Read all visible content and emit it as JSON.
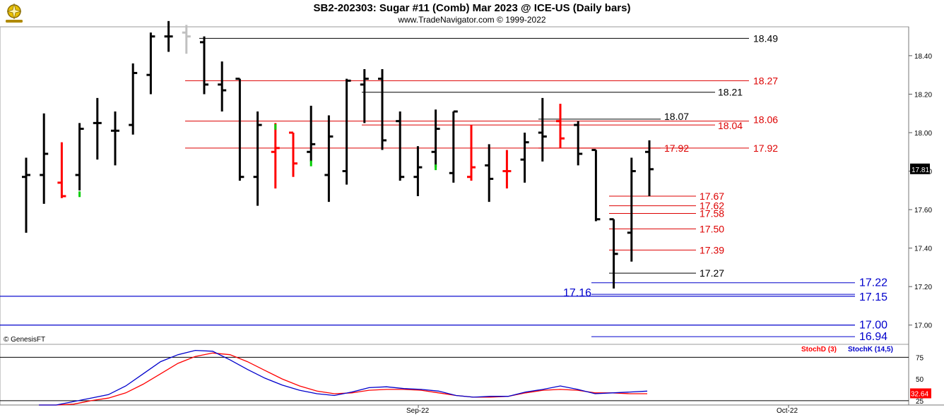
{
  "header": {
    "title": "SB2-202303:  Sugar #11 (Comb) Mar 2023 @ ICE-US  (Daily bars)",
    "subtitle": "www.TradeNavigator.com © 1999-2022",
    "copyright": "© GenesisFT"
  },
  "colors": {
    "up": "#000000",
    "down": "#ff0000",
    "highlight": "#00cc00",
    "ghost": "#c0c0c0",
    "stoch_d": "#ff0000",
    "stoch_k": "#0000cc",
    "blue_level": "#0000aa"
  },
  "chart_data": [
    {
      "type": "ohlc",
      "title": "SB2-202303:  Sugar #11 (Comb) Mar 2023 @ ICE-US  (Daily bars)",
      "ylim": [
        16.9,
        18.55
      ],
      "y_ticks": [
        17.0,
        17.2,
        17.4,
        17.6,
        17.8,
        18.0,
        18.2,
        18.4
      ],
      "x_ticks": [
        "Sep-22",
        "Oct-22"
      ],
      "last_price": "17.81",
      "bars": [
        {
          "o": 17.77,
          "h": 17.87,
          "l": 17.48,
          "c": 17.78,
          "color": "up"
        },
        {
          "o": 17.78,
          "h": 18.1,
          "l": 17.63,
          "c": 17.89,
          "color": "up"
        },
        {
          "o": 17.74,
          "h": 17.95,
          "l": 17.66,
          "c": 17.67,
          "color": "down"
        },
        {
          "o": 17.78,
          "h": 18.05,
          "l": 17.7,
          "c": 18.02,
          "color": "up"
        },
        {
          "o": 18.05,
          "h": 18.18,
          "l": 17.86,
          "c": 18.05,
          "color": "up"
        },
        {
          "o": 18.01,
          "h": 18.11,
          "l": 17.83,
          "c": 18.01,
          "color": "up"
        },
        {
          "o": 18.04,
          "h": 18.36,
          "l": 17.99,
          "c": 18.31,
          "color": "up"
        },
        {
          "o": 18.3,
          "h": 18.52,
          "l": 18.2,
          "c": 18.5,
          "color": "up"
        },
        {
          "o": 18.5,
          "h": 18.58,
          "l": 18.42,
          "c": 18.5,
          "color": "up"
        },
        {
          "o": 18.52,
          "h": 18.56,
          "l": 18.41,
          "c": 18.5,
          "color": "ghost"
        },
        {
          "o": 18.47,
          "h": 18.5,
          "l": 18.2,
          "c": 18.25,
          "color": "up"
        },
        {
          "o": 18.25,
          "h": 18.37,
          "l": 18.11,
          "c": 18.22,
          "color": "up"
        },
        {
          "o": 18.28,
          "h": 18.28,
          "l": 17.75,
          "c": 17.77,
          "color": "up"
        },
        {
          "o": 17.77,
          "h": 18.11,
          "l": 17.62,
          "c": 18.04,
          "color": "up"
        },
        {
          "o": 17.9,
          "h": 18.05,
          "l": 17.71,
          "c": 17.92,
          "color": "down"
        },
        {
          "o": 18.0,
          "h": 18.0,
          "l": 17.77,
          "c": 17.84,
          "color": "down"
        },
        {
          "o": 17.9,
          "h": 18.14,
          "l": 17.85,
          "c": 17.94,
          "color": "up"
        },
        {
          "o": 17.78,
          "h": 18.09,
          "l": 17.64,
          "c": 17.98,
          "color": "up"
        },
        {
          "o": 17.8,
          "h": 18.28,
          "l": 17.73,
          "c": 18.27,
          "color": "up"
        },
        {
          "o": 18.25,
          "h": 18.33,
          "l": 18.05,
          "c": 18.28,
          "color": "up"
        },
        {
          "o": 18.28,
          "h": 18.33,
          "l": 17.91,
          "c": 17.96,
          "color": "up"
        },
        {
          "o": 18.06,
          "h": 18.11,
          "l": 17.75,
          "c": 17.77,
          "color": "up"
        },
        {
          "o": 17.77,
          "h": 17.93,
          "l": 17.67,
          "c": 17.82,
          "color": "up"
        },
        {
          "o": 17.9,
          "h": 18.12,
          "l": 17.82,
          "c": 18.02,
          "color": "up"
        },
        {
          "o": 17.79,
          "h": 18.11,
          "l": 17.74,
          "c": 18.11,
          "color": "up"
        },
        {
          "o": 17.77,
          "h": 18.04,
          "l": 17.75,
          "c": 17.82,
          "color": "down"
        },
        {
          "o": 17.83,
          "h": 17.94,
          "l": 17.64,
          "c": 17.76,
          "color": "up"
        },
        {
          "o": 17.8,
          "h": 17.91,
          "l": 17.71,
          "c": 17.8,
          "color": "down"
        },
        {
          "o": 17.86,
          "h": 18.0,
          "l": 17.74,
          "c": 17.95,
          "color": "up"
        },
        {
          "o": 18.0,
          "h": 18.18,
          "l": 17.85,
          "c": 17.98,
          "color": "up"
        },
        {
          "o": 18.06,
          "h": 18.15,
          "l": 17.92,
          "c": 17.97,
          "color": "down"
        },
        {
          "o": 18.04,
          "h": 18.06,
          "l": 17.83,
          "c": 17.89,
          "color": "up"
        },
        {
          "o": 17.91,
          "h": 17.91,
          "l": 17.54,
          "c": 17.55,
          "color": "up"
        },
        {
          "o": 17.55,
          "h": 17.55,
          "l": 17.19,
          "c": 17.37,
          "color": "up"
        },
        {
          "o": 17.48,
          "h": 17.87,
          "l": 17.33,
          "c": 17.8,
          "color": "up"
        },
        {
          "o": 17.9,
          "h": 17.96,
          "l": 17.67,
          "c": 17.81,
          "color": "up"
        }
      ],
      "levels": [
        {
          "value": 18.49,
          "label": "18.49",
          "color": "#000000"
        },
        {
          "value": 18.27,
          "label": "18.27",
          "color": "#dd0000"
        },
        {
          "value": 18.21,
          "label": "18.21",
          "color": "#000000"
        },
        {
          "value": 18.07,
          "label": "18.07",
          "color": "#000000"
        },
        {
          "value": 18.06,
          "label": "18.06",
          "color": "#dd0000"
        },
        {
          "value": 18.04,
          "label": "18.04",
          "color": "#dd0000"
        },
        {
          "value": 17.92,
          "label": "17.92",
          "color": "#dd0000"
        },
        {
          "value": 17.92,
          "label": "17.92",
          "color": "#dd0000"
        },
        {
          "value": 17.67,
          "label": "17.67",
          "color": "#dd0000"
        },
        {
          "value": 17.62,
          "label": "17.62",
          "color": "#dd0000"
        },
        {
          "value": 17.58,
          "label": "17.58",
          "color": "#dd0000"
        },
        {
          "value": 17.5,
          "label": "17.50",
          "color": "#dd0000"
        },
        {
          "value": 17.39,
          "label": "17.39",
          "color": "#dd0000"
        },
        {
          "value": 17.27,
          "label": "17.27",
          "color": "#000000"
        },
        {
          "value": 17.22,
          "label": "17.22",
          "color": "#0000cc"
        },
        {
          "value": 17.16,
          "label": "17.16",
          "color": "#0000cc"
        },
        {
          "value": 17.15,
          "label": "17.15",
          "color": "#0000cc"
        },
        {
          "value": 17.0,
          "label": "17.00",
          "color": "#0000cc"
        },
        {
          "value": 16.94,
          "label": "16.94",
          "color": "#0000cc"
        }
      ]
    },
    {
      "type": "line",
      "ylim": [
        20,
        90
      ],
      "y_ticks": [
        25,
        50,
        75
      ],
      "last_value": "32.64",
      "series": [
        {
          "name": "StochD (3)",
          "color": "#ff0000",
          "values": [
            18,
            19,
            21,
            25,
            28,
            34,
            44,
            56,
            68,
            76,
            80,
            78,
            70,
            60,
            50,
            42,
            36,
            33,
            34,
            37,
            38,
            38,
            37,
            34,
            31,
            29,
            29,
            30,
            34,
            37,
            38,
            37,
            34,
            34,
            33,
            33
          ]
        },
        {
          "name": "StochK (14,5)",
          "color": "#0000cc",
          "values": [
            20,
            20,
            24,
            28,
            32,
            42,
            56,
            70,
            78,
            83,
            82,
            72,
            61,
            51,
            43,
            37,
            33,
            31,
            35,
            40,
            41,
            39,
            38,
            36,
            31,
            29,
            30,
            30,
            35,
            38,
            42,
            38,
            33,
            34,
            35,
            36
          ]
        }
      ]
    }
  ]
}
